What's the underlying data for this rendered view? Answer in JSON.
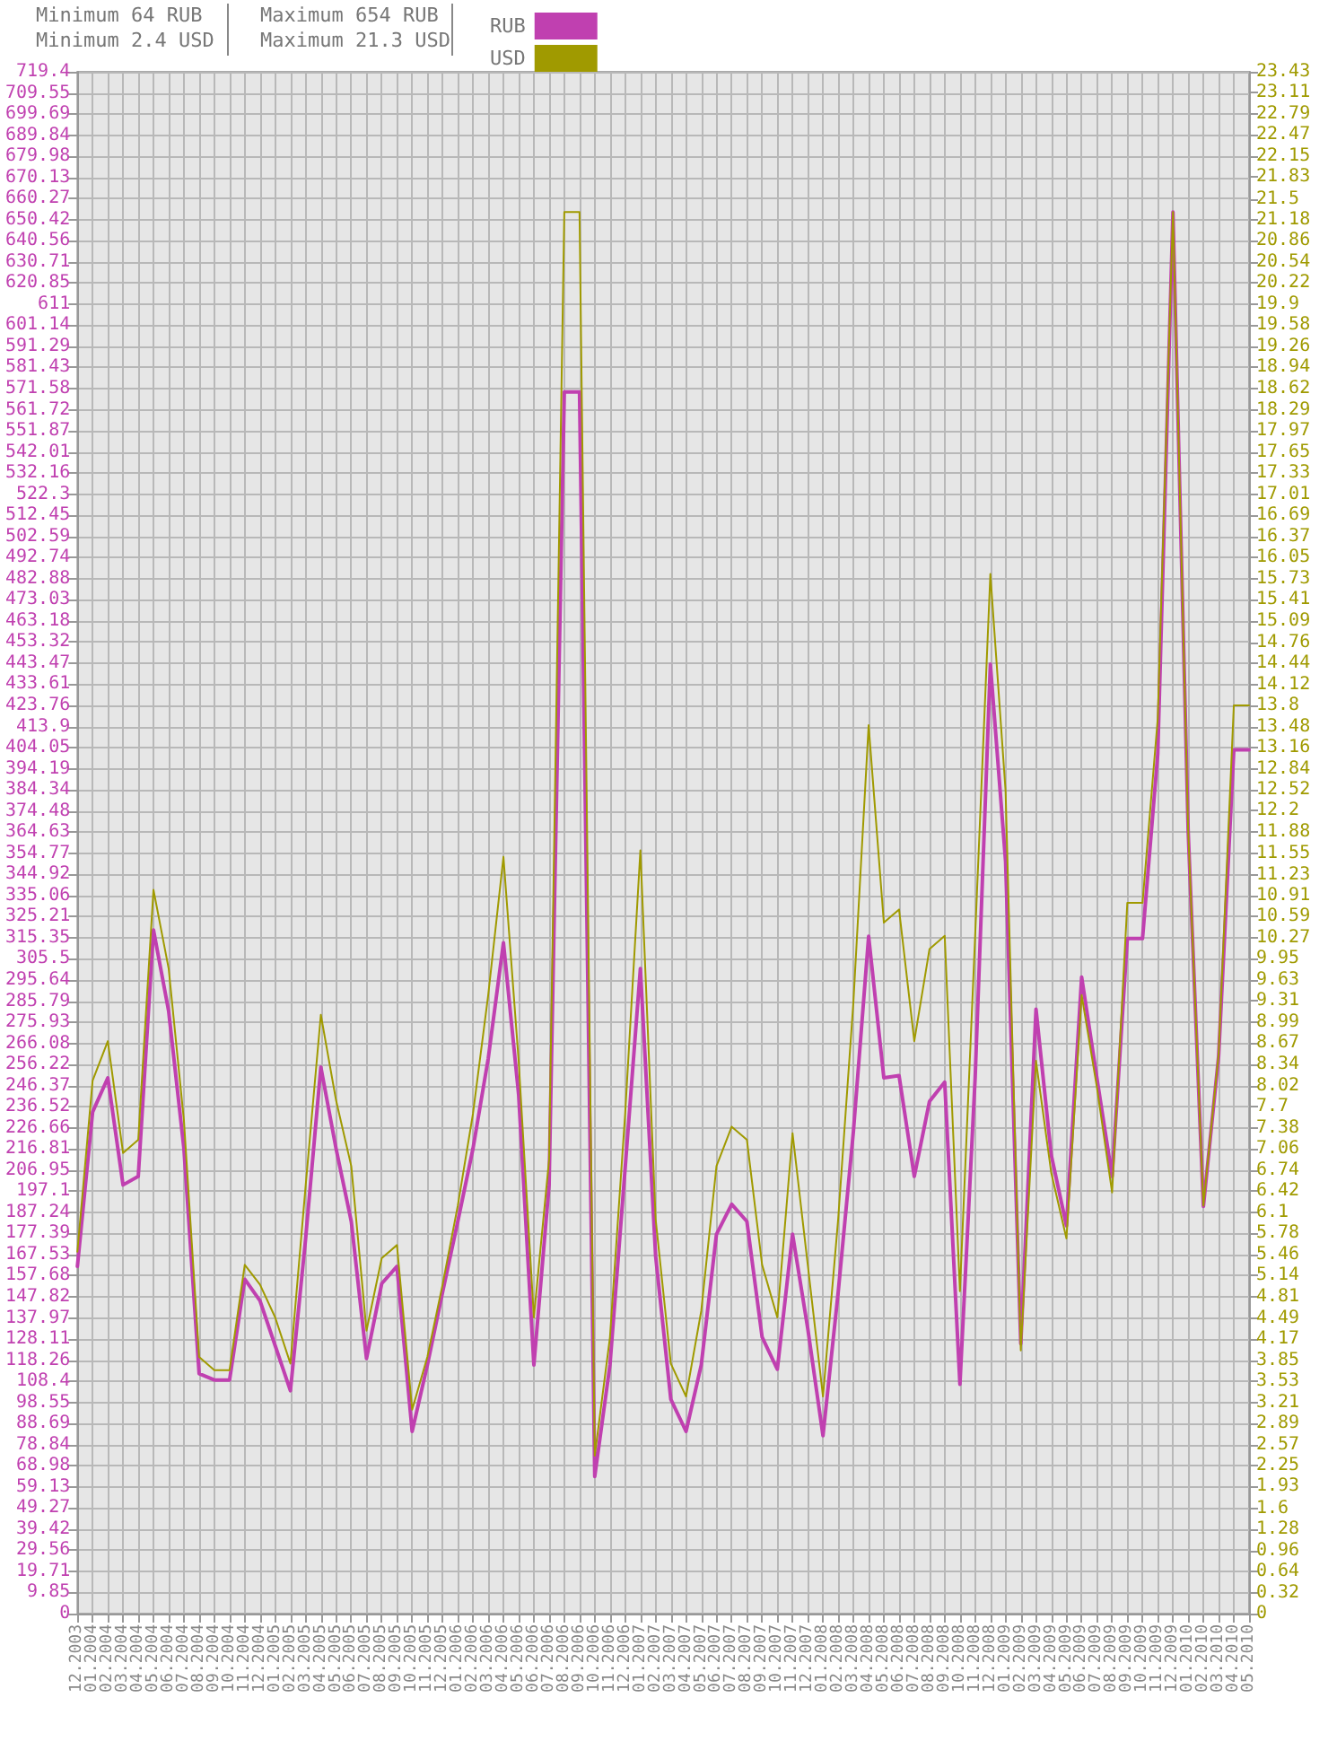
{
  "chart_data": {
    "type": "line",
    "annotations": [
      "Minimum 64 RUB",
      "Minimum 2.4 USD",
      "Maximum 654 RUB",
      "Maximum 21.3 USD"
    ],
    "categories": [
      "12.2003",
      "01.2004",
      "02.2004",
      "03.2004",
      "04.2004",
      "05.2004",
      "06.2004",
      "07.2004",
      "08.2004",
      "09.2004",
      "10.2004",
      "11.2004",
      "12.2004",
      "01.2005",
      "02.2005",
      "03.2005",
      "04.2005",
      "05.2005",
      "06.2005",
      "07.2005",
      "08.2005",
      "09.2005",
      "10.2005",
      "11.2005",
      "12.2005",
      "01.2006",
      "02.2006",
      "03.2006",
      "04.2006",
      "05.2006",
      "06.2006",
      "07.2006",
      "08.2006",
      "09.2006",
      "10.2006",
      "11.2006",
      "12.2006",
      "01.2007",
      "02.2007",
      "03.2007",
      "04.2007",
      "05.2007",
      "06.2007",
      "07.2007",
      "08.2007",
      "09.2007",
      "10.2007",
      "11.2007",
      "12.2007",
      "01.2008",
      "02.2008",
      "03.2008",
      "04.2008",
      "05.2008",
      "06.2008",
      "07.2008",
      "08.2008",
      "09.2008",
      "10.2008",
      "11.2008",
      "12.2008",
      "01.2009",
      "02.2009",
      "03.2009",
      "04.2009",
      "05.2009",
      "06.2009",
      "07.2009",
      "08.2009",
      "09.2009",
      "10.2009",
      "11.2009",
      "12.2009",
      "01.2010",
      "02.2010",
      "03.2010",
      "04.2010",
      "05.2010"
    ],
    "series": [
      {
        "name": "RUB",
        "color": "#c040b0",
        "values": [
          162,
          234,
          250,
          200,
          204,
          319,
          281,
          217,
          112,
          109,
          109,
          156,
          146,
          125,
          104,
          175,
          255,
          217,
          183,
          119,
          154,
          162,
          85,
          116,
          150,
          183,
          217,
          259,
          313,
          242,
          116,
          200,
          570,
          570,
          64,
          116,
          208,
          301,
          167,
          100,
          85,
          116,
          177,
          191,
          183,
          129,
          114,
          177,
          133,
          83,
          150,
          225,
          316,
          250,
          251,
          204,
          239,
          248,
          107,
          250,
          443,
          351,
          126,
          282,
          214,
          181,
          297,
          250,
          204,
          315,
          315,
          401,
          654,
          365,
          190,
          260,
          403,
          403
        ]
      },
      {
        "name": "USD",
        "color": "#a09a00",
        "axis": "y2",
        "values": [
          5.5,
          8.1,
          8.7,
          7.0,
          7.2,
          11.0,
          9.8,
          7.5,
          3.9,
          3.7,
          3.7,
          5.3,
          5.0,
          4.5,
          3.8,
          6.5,
          9.1,
          7.8,
          6.8,
          4.3,
          5.4,
          5.6,
          3.1,
          3.9,
          5.0,
          6.2,
          7.6,
          9.4,
          11.5,
          8.4,
          4.5,
          6.9,
          21.3,
          21.3,
          2.4,
          4.2,
          7.6,
          11.6,
          6.0,
          3.8,
          3.3,
          4.6,
          6.8,
          7.4,
          7.2,
          5.3,
          4.5,
          7.3,
          5.3,
          3.3,
          6.0,
          9.3,
          13.5,
          10.5,
          10.7,
          8.7,
          10.1,
          10.3,
          4.9,
          10.3,
          15.8,
          12.5,
          4.0,
          8.4,
          6.7,
          5.7,
          9.4,
          8.0,
          6.4,
          10.8,
          10.8,
          13.6,
          21.3,
          11.9,
          6.2,
          8.5,
          13.8,
          13.8
        ]
      }
    ],
    "ylim": [
      0,
      719.4
    ],
    "yticks": [
      0,
      9.85,
      19.71,
      29.56,
      39.42,
      49.27,
      59.13,
      68.98,
      78.84,
      88.69,
      98.55,
      108.4,
      118.26,
      128.11,
      137.97,
      147.82,
      157.68,
      167.53,
      177.39,
      187.24,
      197.1,
      206.95,
      216.81,
      226.66,
      236.52,
      246.37,
      256.22,
      266.08,
      275.93,
      285.79,
      295.64,
      305.5,
      315.35,
      325.21,
      335.06,
      344.92,
      354.77,
      364.63,
      374.48,
      384.34,
      394.19,
      404.05,
      413.9,
      423.76,
      433.61,
      443.47,
      453.32,
      463.18,
      473.03,
      482.88,
      492.74,
      502.59,
      512.45,
      522.3,
      532.16,
      542.01,
      551.87,
      561.72,
      571.58,
      581.43,
      591.29,
      601.14,
      611,
      620.85,
      630.71,
      640.56,
      650.42,
      660.27,
      670.13,
      679.98,
      689.84,
      699.69,
      709.55,
      719.4
    ],
    "y2lim": [
      0,
      23.43
    ],
    "y2ticks": [
      0,
      0.32,
      0.64,
      0.96,
      1.28,
      1.6,
      1.93,
      2.25,
      2.57,
      2.89,
      3.21,
      3.53,
      3.85,
      4.17,
      4.49,
      4.81,
      5.14,
      5.46,
      5.78,
      6.1,
      6.42,
      6.74,
      7.06,
      7.38,
      7.7,
      8.02,
      8.34,
      8.67,
      8.99,
      9.31,
      9.63,
      9.95,
      10.27,
      10.59,
      10.91,
      11.23,
      11.55,
      11.88,
      12.2,
      12.52,
      12.84,
      13.16,
      13.48,
      13.8,
      14.12,
      14.44,
      14.76,
      15.09,
      15.41,
      15.73,
      16.05,
      16.37,
      16.69,
      17.01,
      17.33,
      17.65,
      17.97,
      18.29,
      18.62,
      18.94,
      19.26,
      19.58,
      19.9,
      20.22,
      20.54,
      20.86,
      21.18,
      21.5,
      21.83,
      22.15,
      22.47,
      22.79,
      23.11,
      23.43
    ],
    "grid": true,
    "legend": "top",
    "marker": "none"
  }
}
